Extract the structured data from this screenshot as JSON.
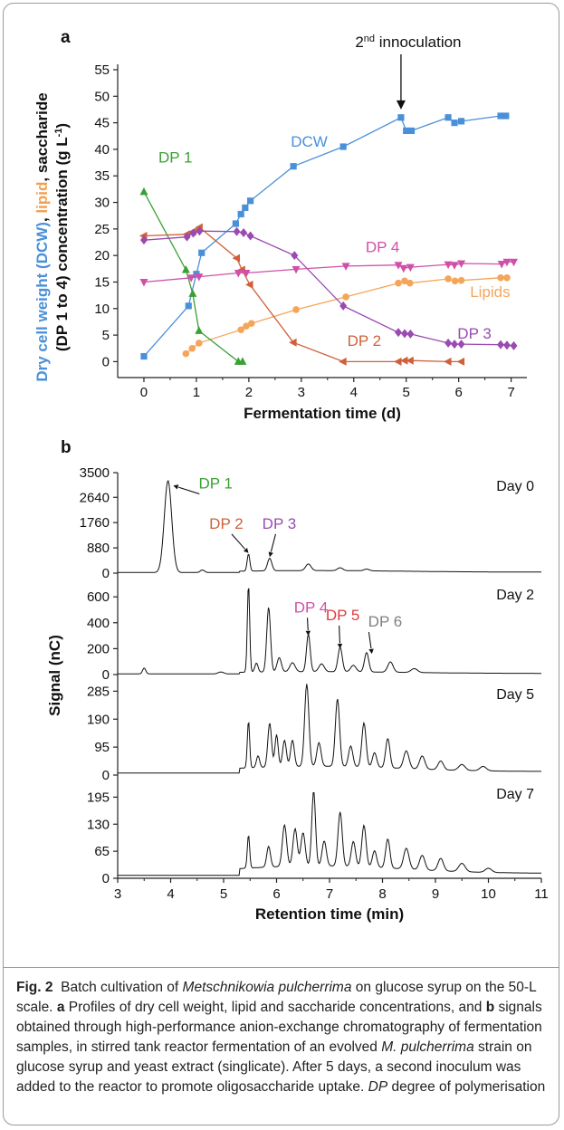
{
  "panel_a_label": "a",
  "panel_b_label": "b",
  "caption": {
    "label": "Fig. 2",
    "t1": "Batch cultivation of",
    "organism": "Metschnikowia pulcherrima",
    "t2": "on glucose syrup on the 50-L scale.",
    "a": "a",
    "t3": "Profiles of dry cell weight, lipid and saccharide concentrations, and",
    "b": "b",
    "t4": "signals obtained through high-performance anion-exchange chromatography of fermentation samples, in stirred tank reactor fermentation of an evolved",
    "organism_short": "M. pulcherrima",
    "t5": "strain on glucose syrup and yeast extract (singlicate). After 5 days, a second inoculum was added to the reactor to promote oligosaccharide uptake.",
    "dp": "DP",
    "t6": "degree of polymerisation"
  },
  "chart_data": [
    {
      "type": "line",
      "panel": "a",
      "xlabel": "Fermentation time (d)",
      "ylabel_parts": [
        {
          "text": "Dry cell weight (DCW)",
          "color": "#4a90d9"
        },
        {
          "text": ", ",
          "color": "#111111"
        },
        {
          "text": "lipid",
          "color": "#f0a050"
        },
        {
          "text": ", saccharide",
          "color": "#111111"
        }
      ],
      "ylabel_line2": "(DP 1 to 4) concentration (g L",
      "ylabel_sup": "-1",
      "ylabel_close": ")",
      "xlim": [
        -0.5,
        7.3
      ],
      "ylim": [
        -3,
        55
      ],
      "xticks": [
        0,
        1,
        2,
        3,
        4,
        5,
        6,
        7
      ],
      "yticks": [
        0,
        5,
        10,
        15,
        20,
        25,
        30,
        35,
        40,
        45,
        50,
        55
      ],
      "annotation": {
        "text_main": "2",
        "text_sup": "nd",
        "text_rest": " innoculation",
        "x": 4.9,
        "y_tip": 46.5
      },
      "series": [
        {
          "name": "DCW",
          "color": "#4a90d9",
          "marker": "square",
          "label_x": 3.15,
          "label_y": 40.5,
          "x": [
            0,
            0.85,
            1.0,
            1.1,
            1.75,
            1.85,
            1.93,
            2.03,
            2.85,
            3.8,
            4.9,
            5.0,
            5.1,
            5.8,
            5.92,
            6.05,
            6.8,
            6.9
          ],
          "y": [
            1.0,
            10.5,
            16.5,
            20.5,
            26.0,
            27.8,
            29.0,
            30.3,
            36.8,
            40.5,
            46.0,
            43.5,
            43.5,
            46.0,
            45.0,
            45.3,
            46.3,
            46.3
          ]
        },
        {
          "name": "Lipids",
          "color": "#f5a55a",
          "marker": "circle",
          "label_x": 6.6,
          "label_y": 12.2,
          "x": [
            0.8,
            0.92,
            1.05,
            1.85,
            1.95,
            2.05,
            2.9,
            3.85,
            4.85,
            4.97,
            5.07,
            5.8,
            5.93,
            6.05,
            6.8,
            6.92
          ],
          "y": [
            1.5,
            2.5,
            3.5,
            6.0,
            6.7,
            7.2,
            9.8,
            12.2,
            14.8,
            15.2,
            14.8,
            15.6,
            15.2,
            15.3,
            15.8,
            15.8
          ]
        },
        {
          "name": "DP 1",
          "color": "#3aa035",
          "marker": "triangle-up",
          "label_x": 0.6,
          "label_y": 37.5,
          "x": [
            0,
            0.8,
            0.93,
            1.05,
            1.8,
            1.88
          ],
          "y": [
            32.0,
            17.3,
            12.8,
            5.8,
            0.0,
            0.0
          ]
        },
        {
          "name": "DP 2",
          "color": "#d0603a",
          "marker": "triangle-left",
          "label_x": 4.2,
          "label_y": 3.0,
          "x": [
            0,
            0.82,
            0.94,
            1.06,
            1.77,
            1.87,
            2.02,
            2.85,
            3.8,
            4.85,
            4.97,
            5.08,
            5.8,
            6.05
          ],
          "y": [
            23.7,
            24.0,
            24.5,
            25.3,
            19.5,
            17.3,
            14.5,
            3.6,
            0.0,
            0.0,
            0.2,
            0.2,
            0.0,
            0.0
          ]
        },
        {
          "name": "DP 3",
          "color": "#9a4ab0",
          "marker": "diamond",
          "label_x": 6.3,
          "label_y": 4.3,
          "x": [
            0,
            0.82,
            0.94,
            1.06,
            1.77,
            1.9,
            2.03,
            2.87,
            3.8,
            4.85,
            4.97,
            5.08,
            5.8,
            5.92,
            6.05,
            6.8,
            6.92,
            7.05
          ],
          "y": [
            22.9,
            23.5,
            24.2,
            24.6,
            24.5,
            24.3,
            23.7,
            20.0,
            10.5,
            5.5,
            5.3,
            5.2,
            3.5,
            3.3,
            3.3,
            3.2,
            3.1,
            3.0
          ]
        },
        {
          "name": "DP 4",
          "color": "#d050a8",
          "marker": "triangle-down",
          "label_x": 4.55,
          "label_y": 20.6,
          "x": [
            0,
            0.9,
            1.05,
            1.8,
            1.95,
            2.9,
            3.85,
            4.85,
            4.95,
            5.08,
            5.8,
            5.92,
            6.05,
            6.82,
            6.92,
            7.05
          ],
          "y": [
            15.0,
            15.8,
            16.0,
            16.7,
            16.7,
            17.4,
            18.0,
            18.2,
            17.6,
            17.8,
            18.3,
            18.2,
            18.5,
            18.4,
            18.8,
            18.8
          ]
        }
      ]
    },
    {
      "type": "line",
      "panel": "b",
      "xlabel": "Retention time (min)",
      "ylabel": "Signal (nC)",
      "xlim": [
        3,
        11
      ],
      "xticks": [
        3,
        4,
        5,
        6,
        7,
        8,
        9,
        10,
        11
      ],
      "subplots": [
        {
          "day_label": "Day 0",
          "ylim": [
            0,
            3500
          ],
          "yticks": [
            "0",
            "880",
            "1760",
            "2640",
            "3500"
          ],
          "ytick_vals": [
            0,
            880,
            1760,
            2640,
            3500
          ],
          "baseline": 60,
          "peaks": [
            [
              3.95,
              3200,
              0.07
            ],
            [
              4.6,
              90,
              0.04
            ],
            [
              5.47,
              600,
              0.025
            ],
            [
              5.87,
              440,
              0.04
            ],
            [
              6.6,
              230,
              0.05
            ],
            [
              7.2,
              100,
              0.05
            ],
            [
              7.7,
              60,
              0.05
            ]
          ],
          "annotations": [
            {
              "text": "DP 1",
              "color": "#3aa035",
              "x": 4.85,
              "y": 2950,
              "tip_x": 4.05,
              "tip_y": 3050
            },
            {
              "text": "DP 2",
              "color": "#d0603a",
              "x": 5.05,
              "y": 1550,
              "tip_x": 5.47,
              "tip_y": 700
            },
            {
              "text": "DP 3",
              "color": "#9a4ab0",
              "x": 6.05,
              "y": 1550,
              "tip_x": 5.87,
              "tip_y": 560
            }
          ]
        },
        {
          "day_label": "Day 2",
          "ylim": [
            0,
            720
          ],
          "yticks": [
            "0",
            "200",
            "400",
            "600"
          ],
          "ytick_vals": [
            0,
            200,
            400,
            600
          ],
          "baseline": 15,
          "peaks": [
            [
              3.5,
              45,
              0.03
            ],
            [
              4.95,
              15,
              0.05
            ],
            [
              5.47,
              680,
              0.022
            ],
            [
              5.62,
              70,
              0.03
            ],
            [
              5.85,
              500,
              0.035
            ],
            [
              6.05,
              110,
              0.04
            ],
            [
              6.3,
              70,
              0.05
            ],
            [
              6.6,
              290,
              0.035
            ],
            [
              6.85,
              60,
              0.05
            ],
            [
              7.2,
              190,
              0.04
            ],
            [
              7.45,
              50,
              0.05
            ],
            [
              7.7,
              150,
              0.04
            ],
            [
              8.15,
              80,
              0.05
            ],
            [
              8.6,
              30,
              0.06
            ]
          ],
          "annotations": [
            {
              "text": "DP 4",
              "color": "#d050a8",
              "x": 6.65,
              "y": 480,
              "tip_x": 6.6,
              "tip_y": 300
            },
            {
              "text": "DP 5",
              "color": "#e03a3a",
              "x": 7.25,
              "y": 420,
              "tip_x": 7.2,
              "tip_y": 200
            },
            {
              "text": "DP 6",
              "color": "#808080",
              "x": 8.05,
              "y": 370,
              "tip_x": 7.8,
              "tip_y": 160
            }
          ]
        },
        {
          "day_label": "Day 5",
          "ylim": [
            0,
            320
          ],
          "yticks": [
            "0",
            "95",
            "190",
            "285"
          ],
          "ytick_vals": [
            0,
            95,
            190,
            285
          ],
          "baseline": 20,
          "peaks": [
            [
              5.47,
              160,
              0.022
            ],
            [
              5.65,
              40,
              0.03
            ],
            [
              5.87,
              150,
              0.035
            ],
            [
              6.0,
              110,
              0.03
            ],
            [
              6.15,
              90,
              0.035
            ],
            [
              6.3,
              90,
              0.035
            ],
            [
              6.57,
              280,
              0.04
            ],
            [
              6.8,
              80,
              0.04
            ],
            [
              7.15,
              230,
              0.04
            ],
            [
              7.4,
              70,
              0.04
            ],
            [
              7.65,
              150,
              0.04
            ],
            [
              7.85,
              50,
              0.04
            ],
            [
              8.1,
              100,
              0.04
            ],
            [
              8.45,
              60,
              0.05
            ],
            [
              8.75,
              45,
              0.05
            ],
            [
              9.1,
              30,
              0.05
            ],
            [
              9.5,
              20,
              0.06
            ],
            [
              9.9,
              15,
              0.06
            ]
          ],
          "annotations": []
        },
        {
          "day_label": "Day 7",
          "ylim": [
            0,
            235
          ],
          "yticks": [
            "0",
            "65",
            "130",
            "195"
          ],
          "ytick_vals": [
            0,
            65,
            130,
            195
          ],
          "baseline": 20,
          "peaks": [
            [
              5.47,
              80,
              0.022
            ],
            [
              5.85,
              50,
              0.035
            ],
            [
              6.15,
              100,
              0.04
            ],
            [
              6.35,
              90,
              0.04
            ],
            [
              6.5,
              80,
              0.04
            ],
            [
              6.7,
              180,
              0.035
            ],
            [
              6.9,
              60,
              0.04
            ],
            [
              7.2,
              130,
              0.04
            ],
            [
              7.45,
              60,
              0.04
            ],
            [
              7.65,
              100,
              0.04
            ],
            [
              7.85,
              40,
              0.04
            ],
            [
              8.1,
              70,
              0.04
            ],
            [
              8.45,
              50,
              0.05
            ],
            [
              8.75,
              35,
              0.05
            ],
            [
              9.1,
              30,
              0.05
            ],
            [
              9.5,
              20,
              0.06
            ],
            [
              10.0,
              10,
              0.06
            ]
          ],
          "annotations": []
        }
      ]
    }
  ]
}
